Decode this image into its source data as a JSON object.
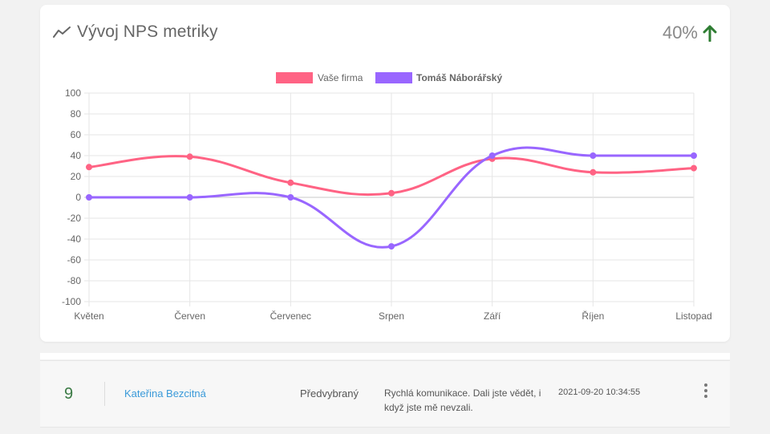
{
  "card": {
    "title": "Vývoj NPS metriky",
    "icon": "trend-line-icon",
    "kpi": {
      "value": "40%",
      "trend_icon": "arrow-up-icon",
      "trend_color": "#2e7d32"
    }
  },
  "chart_data": {
    "type": "line",
    "categories": [
      "Květen",
      "Červen",
      "Červenec",
      "Srpen",
      "Září",
      "Říjen",
      "Listopad"
    ],
    "series": [
      {
        "name": "Vaše firma",
        "color": "#ff6384",
        "values": [
          29,
          39,
          14,
          4,
          37,
          24,
          28
        ]
      },
      {
        "name": "Tomáš Náborářský",
        "color": "#9966ff",
        "values": [
          0,
          0,
          0,
          -47,
          40,
          40,
          40
        ]
      }
    ],
    "ylim": [
      -100,
      100
    ],
    "yticks": [
      "100",
      "80",
      "60",
      "40",
      "20",
      "0",
      "-20",
      "-40",
      "-60",
      "-80",
      "-100"
    ],
    "grid": true,
    "legend": "top"
  },
  "response": {
    "score": "9",
    "name": "Kateřina Bezcitná",
    "status": "Předvybraný",
    "comment": "Rychlá komunikace. Dali jste vědět, i když jste mě nevzali.",
    "date": "2021-09-20 10:34:55",
    "menu_icon": "more-vertical-icon"
  }
}
